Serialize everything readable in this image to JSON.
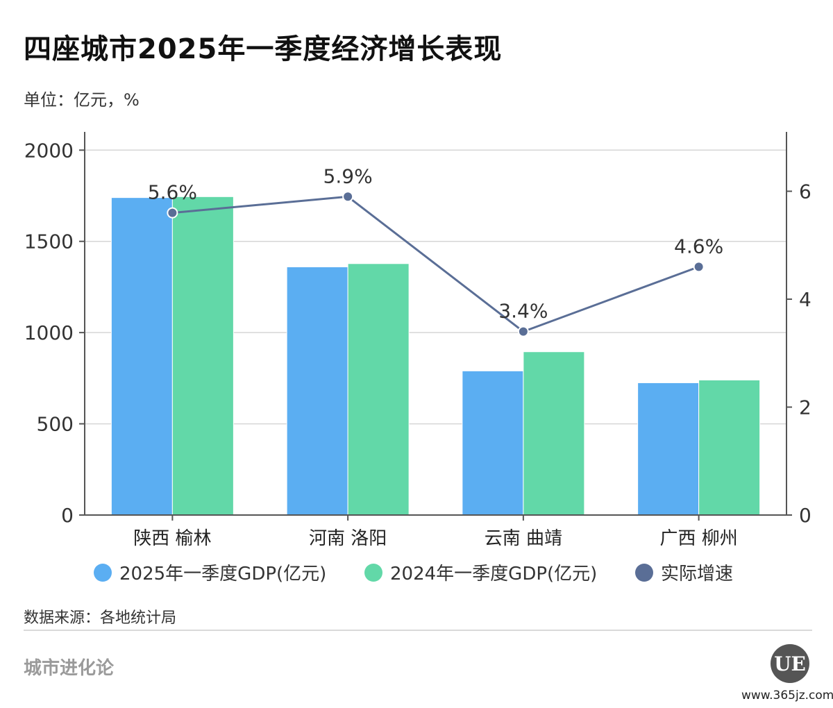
{
  "title": "四座城市2025年一季度经济增长表现",
  "unit": "单位：亿元，%",
  "source": "数据来源：各地统计局",
  "brand": "城市进化论",
  "logo_text": "UE",
  "website": "www.365jz.com",
  "watermark": "城市进化论",
  "chart_data": {
    "type": "bar",
    "categories": [
      "陕西 榆林",
      "河南 洛阳",
      "云南 曲靖",
      "广西 柳州"
    ],
    "series": [
      {
        "name": "2025年一季度GDP(亿元)",
        "type": "bar",
        "axis": "left",
        "color": "#5baef2",
        "values": [
          1740,
          1360,
          790,
          725
        ]
      },
      {
        "name": "2024年一季度GDP(亿元)",
        "type": "bar",
        "axis": "left",
        "color": "#62d8a8",
        "values": [
          1745,
          1378,
          895,
          740
        ]
      },
      {
        "name": "实际增速",
        "type": "line",
        "axis": "right",
        "color": "#5a6e96",
        "values": [
          5.6,
          5.9,
          3.4,
          4.6
        ],
        "labels": [
          "5.6%",
          "5.9%",
          "3.4%",
          "4.6%"
        ]
      }
    ],
    "left_axis": {
      "ticks": [
        0,
        500,
        1000,
        1500,
        2000
      ],
      "labels": [
        "0",
        "500",
        "1000",
        "1500",
        "2000"
      ],
      "range": [
        0,
        2100
      ]
    },
    "right_axis": {
      "ticks": [
        0,
        2,
        4,
        6
      ],
      "labels": [
        "0",
        "2",
        "4",
        "6"
      ],
      "range": [
        0,
        7.1
      ]
    },
    "grid": true,
    "legend_position": "bottom"
  }
}
